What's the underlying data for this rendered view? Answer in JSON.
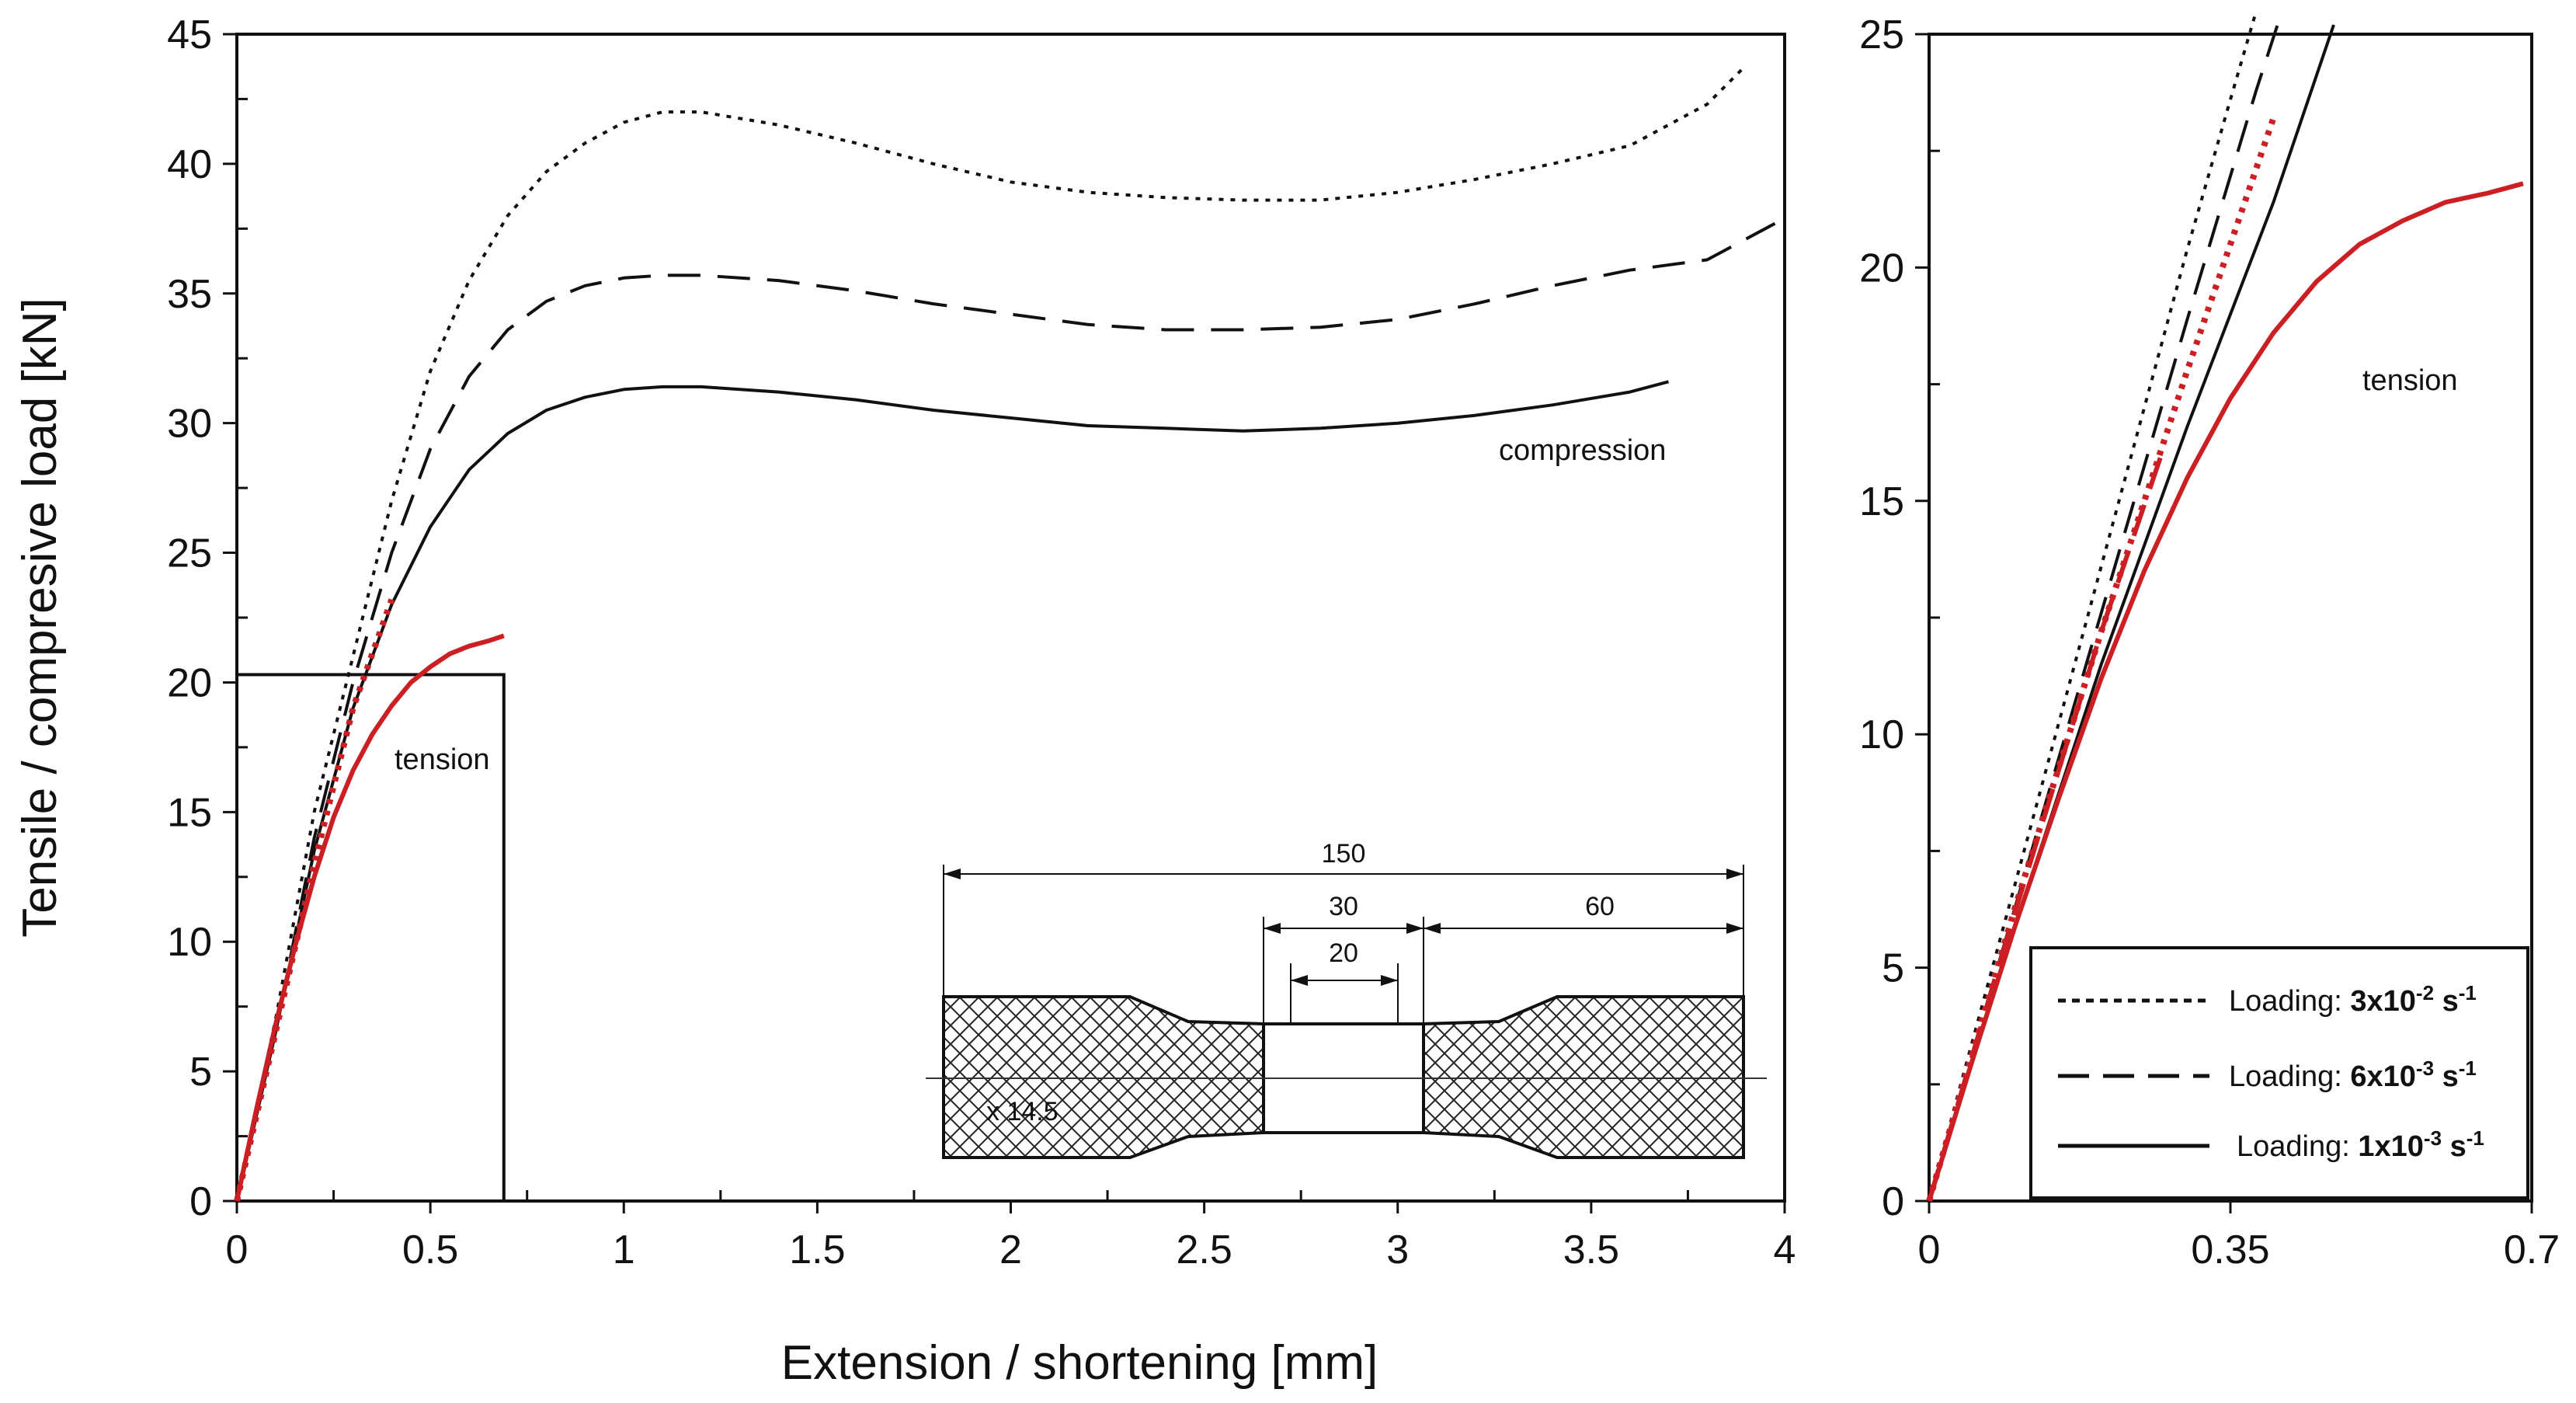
{
  "colors": {
    "black": "#111111",
    "red": "#cc1f24"
  },
  "chart_data": [
    {
      "type": "line",
      "xlabel": "Extension / shortening [mm]",
      "ylabel": "Tensile / compresive load [kN]",
      "xlim": [
        0,
        4
      ],
      "ylim": [
        0,
        45
      ],
      "xticks": [
        "0",
        "0.5",
        "1",
        "1.5",
        "2",
        "2.5",
        "3",
        "3.5",
        "4"
      ],
      "yticks": [
        "0",
        "5",
        "10",
        "15",
        "20",
        "25",
        "30",
        "35",
        "40",
        "45"
      ],
      "inset_box": {
        "x": [
          0,
          0.69
        ],
        "y": [
          0,
          20.3
        ]
      },
      "annotations": {
        "compression": "compression",
        "tension": "tension"
      },
      "series": [
        {
          "name": "Loading 3x10^-2 s^-1 compression",
          "dash": "dot",
          "color": "black",
          "x": [
            0,
            0.1,
            0.2,
            0.3,
            0.4,
            0.5,
            0.6,
            0.7,
            0.8,
            0.9,
            1.0,
            1.1,
            1.2,
            1.4,
            1.6,
            1.8,
            2.0,
            2.2,
            2.4,
            2.6,
            2.8,
            3.0,
            3.2,
            3.4,
            3.6,
            3.8,
            3.9
          ],
          "y": [
            0,
            7,
            15,
            21,
            27,
            32,
            35.5,
            38,
            39.7,
            40.8,
            41.6,
            42,
            42,
            41.5,
            40.8,
            40,
            39.3,
            38.9,
            38.7,
            38.6,
            38.6,
            38.9,
            39.4,
            40.0,
            40.7,
            42.3,
            43.8
          ]
        },
        {
          "name": "Loading 6x10^-3 s^-1 compression",
          "dash": "dash",
          "color": "black",
          "x": [
            0,
            0.1,
            0.2,
            0.3,
            0.4,
            0.5,
            0.6,
            0.7,
            0.8,
            0.9,
            1.0,
            1.1,
            1.2,
            1.4,
            1.6,
            1.8,
            2.0,
            2.2,
            2.4,
            2.6,
            2.8,
            3.0,
            3.2,
            3.4,
            3.6,
            3.8,
            4.0
          ],
          "y": [
            0,
            6.5,
            14,
            20,
            25,
            29,
            31.8,
            33.6,
            34.7,
            35.3,
            35.6,
            35.7,
            35.7,
            35.5,
            35.1,
            34.6,
            34.2,
            33.8,
            33.6,
            33.6,
            33.7,
            34.0,
            34.6,
            35.3,
            35.9,
            36.3,
            37.9
          ]
        },
        {
          "name": "Loading 1x10^-3 s^-1 compression",
          "dash": "solid",
          "color": "black",
          "x": [
            0,
            0.1,
            0.2,
            0.3,
            0.4,
            0.5,
            0.6,
            0.7,
            0.8,
            0.9,
            1.0,
            1.1,
            1.2,
            1.4,
            1.6,
            1.8,
            2.0,
            2.2,
            2.4,
            2.6,
            2.8,
            3.0,
            3.2,
            3.4,
            3.6,
            3.7
          ],
          "y": [
            0,
            6.5,
            13.5,
            19,
            23,
            26,
            28.2,
            29.6,
            30.5,
            31.0,
            31.3,
            31.4,
            31.4,
            31.2,
            30.9,
            30.5,
            30.2,
            29.9,
            29.8,
            29.7,
            29.8,
            30.0,
            30.3,
            30.7,
            31.2,
            31.6
          ]
        },
        {
          "name": "Loading 3x10^-2 s^-1 tension",
          "dash": "dot",
          "color": "red",
          "x": [
            0,
            0.1,
            0.2,
            0.3,
            0.4
          ],
          "y": [
            0,
            6.5,
            13,
            19,
            23.2
          ]
        },
        {
          "name": "Loading 1x10^-3 s^-1 tension",
          "dash": "solid",
          "color": "red",
          "x": [
            0,
            0.05,
            0.1,
            0.15,
            0.2,
            0.25,
            0.3,
            0.35,
            0.4,
            0.45,
            0.5,
            0.55,
            0.6,
            0.65,
            0.69
          ],
          "y": [
            0,
            3.5,
            6.8,
            9.8,
            12.5,
            14.8,
            16.6,
            18.0,
            19.1,
            20.0,
            20.6,
            21.1,
            21.4,
            21.6,
            21.8
          ]
        }
      ]
    },
    {
      "type": "line",
      "xlabel": "",
      "ylabel": "",
      "xlim": [
        0,
        0.7
      ],
      "ylim": [
        0,
        25
      ],
      "xticks": [
        "0",
        "0.35",
        "0.7"
      ],
      "yticks": [
        "0",
        "5",
        "10",
        "15",
        "20",
        "25"
      ],
      "annotations": {
        "tension": "tension"
      },
      "legend": {
        "position": "bottom-right",
        "items": [
          {
            "dash": "dot",
            "prefix": "Loading: ",
            "rate": "3x10",
            "exp": "-2",
            "unit": " s",
            "unit_exp": "-1"
          },
          {
            "dash": "dash",
            "prefix": "Loading: ",
            "rate": "6x10",
            "exp": "-3",
            "unit": " s",
            "unit_exp": "-1"
          },
          {
            "dash": "solid",
            "prefix": "Loading: ",
            "rate": "1x10",
            "exp": "-3",
            "unit": " s",
            "unit_exp": "-1"
          }
        ]
      },
      "series": [
        {
          "name": "3x10^-2 compression",
          "dash": "dot",
          "color": "black",
          "x": [
            0,
            0.1,
            0.2,
            0.3,
            0.35,
            0.38
          ],
          "y": [
            0,
            6.8,
            13.6,
            20.4,
            23.6,
            25.5
          ]
        },
        {
          "name": "6x10^-3 compression",
          "dash": "dash",
          "color": "black",
          "x": [
            0,
            0.1,
            0.2,
            0.3,
            0.38,
            0.41
          ],
          "y": [
            0,
            6.3,
            12.6,
            18.9,
            23.8,
            25.5
          ]
        },
        {
          "name": "1x10^-3 compression",
          "dash": "solid",
          "color": "black",
          "x": [
            0,
            0.1,
            0.2,
            0.3,
            0.4,
            0.47
          ],
          "y": [
            0,
            5.9,
            11.5,
            16.6,
            21.4,
            25.2
          ]
        },
        {
          "name": "3x10^-2 tension",
          "dash": "dot",
          "color": "red",
          "x": [
            0,
            0.1,
            0.2,
            0.3,
            0.4
          ],
          "y": [
            0,
            6.3,
            12.2,
            17.8,
            23.2
          ]
        },
        {
          "name": "6x10^-3 tension",
          "dash": "dash",
          "color": "red",
          "x": [
            0,
            0.05,
            0.1,
            0.15,
            0.2,
            0.27
          ],
          "y": [
            0,
            3.1,
            6.2,
            9.2,
            12.2,
            16.0
          ]
        },
        {
          "name": "1x10^-3 tension",
          "dash": "solid",
          "color": "red",
          "x": [
            0,
            0.05,
            0.1,
            0.15,
            0.2,
            0.25,
            0.3,
            0.35,
            0.4,
            0.45,
            0.5,
            0.55,
            0.6,
            0.65,
            0.69
          ],
          "y": [
            0,
            3.0,
            5.9,
            8.6,
            11.2,
            13.5,
            15.5,
            17.2,
            18.6,
            19.7,
            20.5,
            21.0,
            21.4,
            21.6,
            21.8
          ]
        }
      ]
    }
  ],
  "specimen": {
    "dims": {
      "total": "150",
      "gauge": "30",
      "inner": "20",
      "grip": "60"
    },
    "thickness_label": "x 14.5"
  }
}
